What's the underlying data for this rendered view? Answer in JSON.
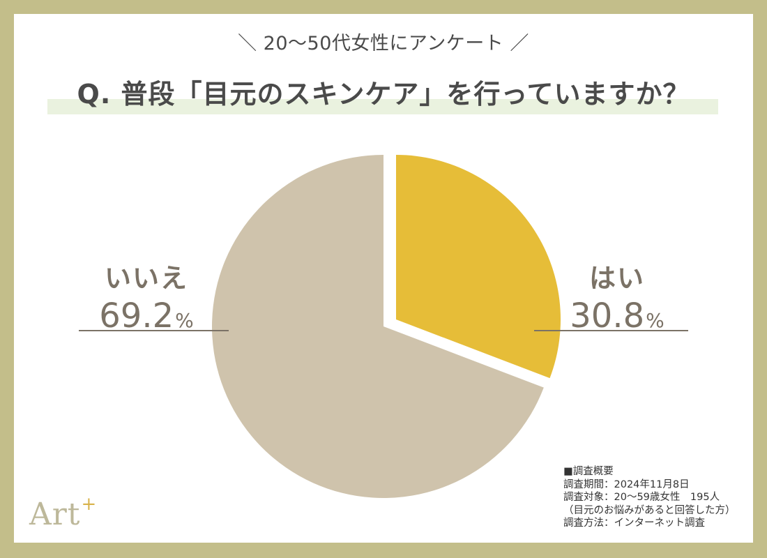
{
  "header": {
    "subtitle": "＼ 20〜50代女性にアンケート ／",
    "question": "Q. 普段「目元のスキンケア」を行っていますか？"
  },
  "labels": {
    "yes": {
      "name": "はい",
      "value": "30.8",
      "unit": "%"
    },
    "no": {
      "name": "いいえ",
      "value": "69.2",
      "unit": "%"
    }
  },
  "survey": {
    "heading": "■調査概要",
    "period": "調査期間：2024年11月8日",
    "target": "調査対象：20〜59歳女性　195人",
    "note": "（目元のお悩みがあると回答した方）",
    "method": "調査方法：インターネット調査"
  },
  "logo": {
    "text": "Art",
    "mark": "+"
  },
  "colors": {
    "frame": "#C3BE8A",
    "yes": "#E6BD38",
    "no": "#CFC3AC",
    "label": "#7B7266",
    "highlight": "#EAF2DF"
  },
  "chart_data": {
    "type": "pie",
    "title": "Q. 普段「目元のスキンケア」を行っていますか？",
    "subtitle": "20〜50代女性にアンケート",
    "categories": [
      "はい",
      "いいえ"
    ],
    "values": [
      30.8,
      69.2
    ],
    "unit": "%",
    "colors": [
      "#E6BD38",
      "#CFC3AC"
    ],
    "exploded": [
      "はい"
    ],
    "start_angle": "12 o'clock, clockwise",
    "n": 195
  }
}
